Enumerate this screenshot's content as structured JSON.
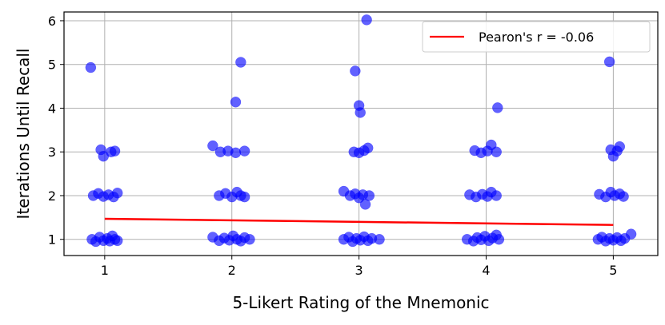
{
  "chart_data": {
    "type": "scatter",
    "xlabel": "5-Likert Rating of the Mnemonic",
    "ylabel": "Iterations Until Recall",
    "xlim": [
      0.68,
      5.35
    ],
    "ylim": [
      0.63,
      6.2
    ],
    "xticks": [
      1,
      2,
      3,
      4,
      5
    ],
    "yticks": [
      1,
      2,
      3,
      4,
      5,
      6
    ],
    "grid": true,
    "legend_position": "top-right",
    "point_color": "#0000ff",
    "fit_color": "#ff0000",
    "series": [
      {
        "kind": "scatter",
        "points": [
          {
            "x": 0.89,
            "y": 4.93
          },
          {
            "x": 0.97,
            "y": 3.05
          },
          {
            "x": 0.99,
            "y": 2.9
          },
          {
            "x": 1.05,
            "y": 3.0
          },
          {
            "x": 1.08,
            "y": 3.02
          },
          {
            "x": 0.91,
            "y": 2.0
          },
          {
            "x": 0.95,
            "y": 2.05
          },
          {
            "x": 0.99,
            "y": 1.98
          },
          {
            "x": 1.03,
            "y": 2.02
          },
          {
            "x": 1.07,
            "y": 1.97
          },
          {
            "x": 1.1,
            "y": 2.06
          },
          {
            "x": 0.9,
            "y": 1.0
          },
          {
            "x": 0.93,
            "y": 0.95
          },
          {
            "x": 0.96,
            "y": 1.05
          },
          {
            "x": 0.99,
            "y": 0.97
          },
          {
            "x": 1.02,
            "y": 1.02
          },
          {
            "x": 1.04,
            "y": 0.96
          },
          {
            "x": 1.06,
            "y": 1.08
          },
          {
            "x": 1.08,
            "y": 1.0
          },
          {
            "x": 1.1,
            "y": 0.97
          },
          {
            "x": 2.07,
            "y": 5.05
          },
          {
            "x": 2.03,
            "y": 4.14
          },
          {
            "x": 1.85,
            "y": 3.14
          },
          {
            "x": 1.91,
            "y": 3.0
          },
          {
            "x": 1.97,
            "y": 3.02
          },
          {
            "x": 2.03,
            "y": 2.98
          },
          {
            "x": 2.1,
            "y": 3.02
          },
          {
            "x": 1.9,
            "y": 2.0
          },
          {
            "x": 1.95,
            "y": 2.05
          },
          {
            "x": 2.0,
            "y": 1.97
          },
          {
            "x": 2.04,
            "y": 2.08
          },
          {
            "x": 2.07,
            "y": 2.0
          },
          {
            "x": 2.1,
            "y": 1.97
          },
          {
            "x": 1.85,
            "y": 1.05
          },
          {
            "x": 1.9,
            "y": 0.97
          },
          {
            "x": 1.94,
            "y": 1.03
          },
          {
            "x": 1.98,
            "y": 0.98
          },
          {
            "x": 2.01,
            "y": 1.08
          },
          {
            "x": 2.04,
            "y": 1.0
          },
          {
            "x": 2.07,
            "y": 0.96
          },
          {
            "x": 2.1,
            "y": 1.04
          },
          {
            "x": 2.14,
            "y": 1.0
          },
          {
            "x": 2.97,
            "y": 4.85
          },
          {
            "x": 3.06,
            "y": 6.02
          },
          {
            "x": 3.0,
            "y": 4.06
          },
          {
            "x": 3.01,
            "y": 3.9
          },
          {
            "x": 2.96,
            "y": 3.0
          },
          {
            "x": 3.0,
            "y": 2.98
          },
          {
            "x": 3.04,
            "y": 3.03
          },
          {
            "x": 3.07,
            "y": 3.09
          },
          {
            "x": 2.88,
            "y": 2.1
          },
          {
            "x": 2.93,
            "y": 2.0
          },
          {
            "x": 2.97,
            "y": 2.04
          },
          {
            "x": 3.0,
            "y": 1.95
          },
          {
            "x": 3.03,
            "y": 2.02
          },
          {
            "x": 3.05,
            "y": 1.8
          },
          {
            "x": 3.08,
            "y": 2.0
          },
          {
            "x": 2.88,
            "y": 1.0
          },
          {
            "x": 2.92,
            "y": 1.05
          },
          {
            "x": 2.95,
            "y": 0.95
          },
          {
            "x": 2.98,
            "y": 1.02
          },
          {
            "x": 3.01,
            "y": 0.98
          },
          {
            "x": 3.04,
            "y": 1.06
          },
          {
            "x": 3.07,
            "y": 0.97
          },
          {
            "x": 3.1,
            "y": 1.02
          },
          {
            "x": 3.16,
            "y": 1.0
          },
          {
            "x": 4.09,
            "y": 4.01
          },
          {
            "x": 3.91,
            "y": 3.03
          },
          {
            "x": 3.96,
            "y": 2.98
          },
          {
            "x": 4.01,
            "y": 3.02
          },
          {
            "x": 4.04,
            "y": 3.16
          },
          {
            "x": 4.08,
            "y": 3.0
          },
          {
            "x": 3.87,
            "y": 2.02
          },
          {
            "x": 3.92,
            "y": 1.97
          },
          {
            "x": 3.97,
            "y": 2.03
          },
          {
            "x": 4.01,
            "y": 1.98
          },
          {
            "x": 4.04,
            "y": 2.08
          },
          {
            "x": 4.08,
            "y": 2.0
          },
          {
            "x": 3.85,
            "y": 1.0
          },
          {
            "x": 3.9,
            "y": 0.96
          },
          {
            "x": 3.93,
            "y": 1.04
          },
          {
            "x": 3.96,
            "y": 0.99
          },
          {
            "x": 3.99,
            "y": 1.07
          },
          {
            "x": 4.02,
            "y": 0.97
          },
          {
            "x": 4.05,
            "y": 1.03
          },
          {
            "x": 4.08,
            "y": 1.1
          },
          {
            "x": 4.1,
            "y": 1.0
          },
          {
            "x": 4.97,
            "y": 5.06
          },
          {
            "x": 4.98,
            "y": 3.05
          },
          {
            "x": 5.0,
            "y": 2.9
          },
          {
            "x": 5.03,
            "y": 3.02
          },
          {
            "x": 5.05,
            "y": 3.12
          },
          {
            "x": 4.89,
            "y": 2.03
          },
          {
            "x": 4.94,
            "y": 1.97
          },
          {
            "x": 4.98,
            "y": 2.08
          },
          {
            "x": 5.01,
            "y": 2.0
          },
          {
            "x": 5.05,
            "y": 2.04
          },
          {
            "x": 5.08,
            "y": 1.98
          },
          {
            "x": 4.88,
            "y": 1.0
          },
          {
            "x": 4.91,
            "y": 1.05
          },
          {
            "x": 4.94,
            "y": 0.96
          },
          {
            "x": 4.97,
            "y": 1.02
          },
          {
            "x": 5.0,
            "y": 0.98
          },
          {
            "x": 5.03,
            "y": 1.04
          },
          {
            "x": 5.06,
            "y": 0.97
          },
          {
            "x": 5.09,
            "y": 1.02
          },
          {
            "x": 5.14,
            "y": 1.12
          }
        ]
      },
      {
        "kind": "line",
        "name": "Pearon's r = -0.06",
        "x": [
          1,
          5
        ],
        "y": [
          1.47,
          1.33
        ]
      }
    ]
  }
}
